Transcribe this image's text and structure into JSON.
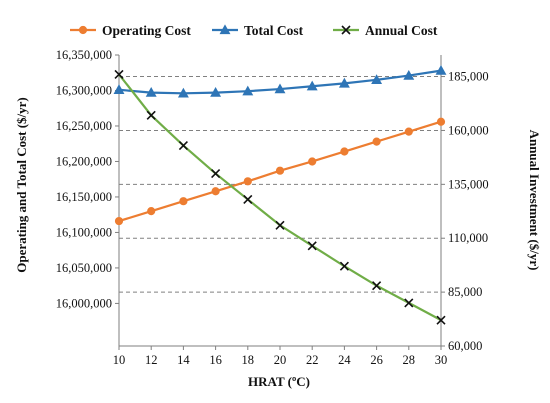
{
  "chart_data": {
    "type": "line",
    "x": [
      10,
      12,
      14,
      16,
      18,
      20,
      22,
      24,
      26,
      28,
      30
    ],
    "xlabel": "HRAT (ºC)",
    "xlim": [
      10,
      30
    ],
    "ylabel_left": "Operating and Total Cost ($/yr)",
    "ylim_left": [
      15940000,
      16350000
    ],
    "yticks_left": [
      "16,350,000",
      "16,300,000",
      "16,250,000",
      "16,200,000",
      "16,150,000",
      "16,100,000",
      "16,050,000",
      "16,000,000"
    ],
    "ylabel_right": "Annual Investment ($/yr)",
    "ylim_right": [
      60000,
      195000
    ],
    "yticks_right": [
      "185,000",
      "160,000",
      "135,000",
      "110,000",
      "85,000",
      "60,000"
    ],
    "gridlines": "dashed",
    "legend_position": "top",
    "series": [
      {
        "name": "Operating Cost",
        "axis": "left",
        "marker": "circle",
        "color": "#ED7D31",
        "values": [
          16116000,
          16130000,
          16144000,
          16158000,
          16172000,
          16187000,
          16200000,
          16214000,
          16228000,
          16242000,
          16256000
        ]
      },
      {
        "name": "Total Cost",
        "axis": "left",
        "marker": "triangle",
        "color": "#2E75B6",
        "values": [
          16301000,
          16297000,
          16296000,
          16297000,
          16299000,
          16302000,
          16306000,
          16310000,
          16315000,
          16321000,
          16328000
        ]
      },
      {
        "name": "Annual Cost",
        "axis": "right",
        "marker": "x",
        "color": "#70AD47",
        "values": [
          186000,
          167000,
          153000,
          140000,
          128000,
          116000,
          106500,
          97000,
          88000,
          80000,
          72000
        ]
      }
    ]
  }
}
